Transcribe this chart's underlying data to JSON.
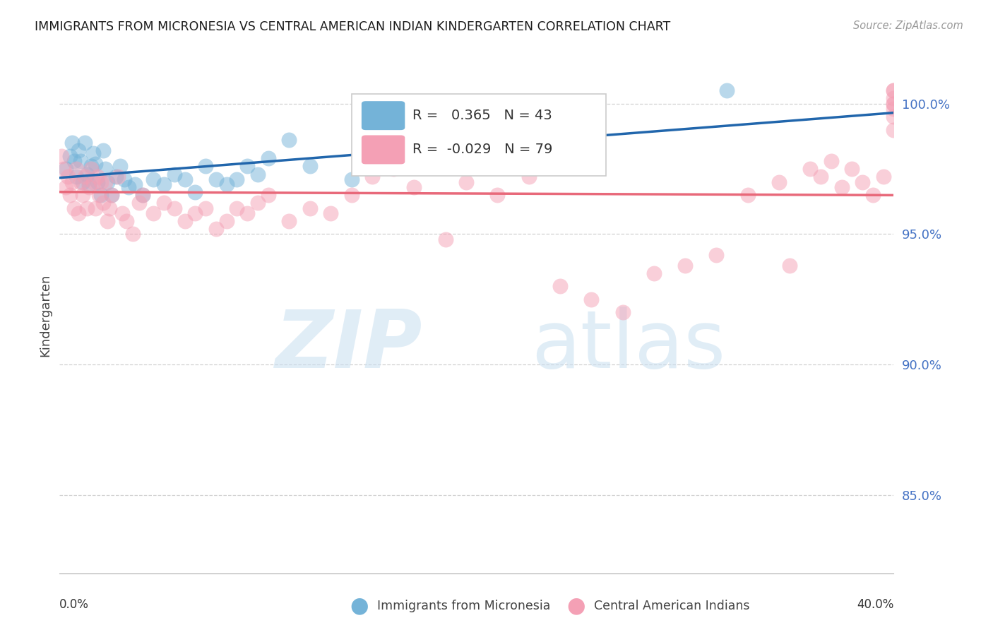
{
  "title": "IMMIGRANTS FROM MICRONESIA VS CENTRAL AMERICAN INDIAN KINDERGARTEN CORRELATION CHART",
  "source": "Source: ZipAtlas.com",
  "ylabel": "Kindergarten",
  "x_min": 0.0,
  "x_max": 40.0,
  "y_min": 82.0,
  "y_max": 101.8,
  "y_ticks": [
    85.0,
    90.0,
    95.0,
    100.0
  ],
  "y_tick_labels": [
    "85.0%",
    "90.0%",
    "95.0%",
    "100.0%"
  ],
  "legend_label_blue": "Immigrants from Micronesia",
  "legend_label_pink": "Central American Indians",
  "R_blue": 0.365,
  "N_blue": 43,
  "R_pink": -0.029,
  "N_pink": 79,
  "blue_color": "#74b3d8",
  "pink_color": "#f4a0b5",
  "blue_line_color": "#2166ac",
  "pink_line_color": "#e8697a",
  "watermark_zip": "ZIP",
  "watermark_atlas": "atlas",
  "watermark_color_zip": "#c8dff0",
  "watermark_color_atlas": "#c8dff0",
  "blue_points_x": [
    0.3,
    0.5,
    0.6,
    0.7,
    0.8,
    0.9,
    1.0,
    1.1,
    1.2,
    1.3,
    1.4,
    1.5,
    1.6,
    1.7,
    1.8,
    2.0,
    2.1,
    2.2,
    2.3,
    2.5,
    2.7,
    2.9,
    3.1,
    3.3,
    3.6,
    4.0,
    4.5,
    5.0,
    5.5,
    6.0,
    6.5,
    7.0,
    7.5,
    8.0,
    8.5,
    9.0,
    9.5,
    10.0,
    11.0,
    12.0,
    14.0,
    16.0,
    32.0
  ],
  "blue_points_y": [
    97.5,
    98.0,
    98.5,
    97.8,
    97.2,
    98.2,
    97.8,
    97.0,
    98.5,
    97.3,
    96.9,
    97.6,
    98.1,
    97.7,
    97.0,
    96.5,
    98.2,
    97.5,
    97.0,
    96.5,
    97.2,
    97.6,
    97.1,
    96.8,
    96.9,
    96.5,
    97.1,
    96.9,
    97.3,
    97.1,
    96.6,
    97.6,
    97.1,
    96.9,
    97.1,
    97.6,
    97.3,
    97.9,
    98.6,
    97.6,
    97.1,
    98.3,
    100.5
  ],
  "pink_points_x": [
    0.1,
    0.2,
    0.3,
    0.4,
    0.5,
    0.6,
    0.7,
    0.8,
    0.9,
    1.0,
    1.1,
    1.2,
    1.3,
    1.4,
    1.5,
    1.6,
    1.7,
    1.8,
    1.9,
    2.0,
    2.1,
    2.2,
    2.3,
    2.4,
    2.5,
    2.8,
    3.0,
    3.2,
    3.5,
    3.8,
    4.0,
    4.5,
    5.0,
    5.5,
    6.0,
    6.5,
    7.0,
    7.5,
    8.0,
    8.5,
    9.0,
    9.5,
    10.0,
    11.0,
    12.0,
    13.0,
    14.0,
    15.0,
    16.0,
    17.0,
    18.5,
    19.5,
    21.0,
    22.5,
    24.0,
    25.5,
    27.0,
    28.5,
    30.0,
    31.5,
    33.0,
    34.5,
    35.0,
    36.0,
    36.5,
    37.0,
    37.5,
    38.0,
    38.5,
    39.0,
    39.5,
    40.0,
    40.0,
    40.0,
    40.0,
    40.0,
    40.0,
    40.0,
    40.0
  ],
  "pink_points_y": [
    98.0,
    97.5,
    96.8,
    97.2,
    96.5,
    97.0,
    96.0,
    97.5,
    95.8,
    97.0,
    96.5,
    97.2,
    96.0,
    96.8,
    97.5,
    97.0,
    96.0,
    97.2,
    96.5,
    97.0,
    96.2,
    97.0,
    95.5,
    96.0,
    96.5,
    97.2,
    95.8,
    95.5,
    95.0,
    96.2,
    96.5,
    95.8,
    96.2,
    96.0,
    95.5,
    95.8,
    96.0,
    95.2,
    95.5,
    96.0,
    95.8,
    96.2,
    96.5,
    95.5,
    96.0,
    95.8,
    96.5,
    97.2,
    97.5,
    96.8,
    94.8,
    97.0,
    96.5,
    97.2,
    93.0,
    92.5,
    92.0,
    93.5,
    93.8,
    94.2,
    96.5,
    97.0,
    93.8,
    97.5,
    97.2,
    97.8,
    96.8,
    97.5,
    97.0,
    96.5,
    97.2,
    100.5,
    99.5,
    100.0,
    100.2,
    99.8,
    100.0,
    100.5,
    99.0
  ]
}
